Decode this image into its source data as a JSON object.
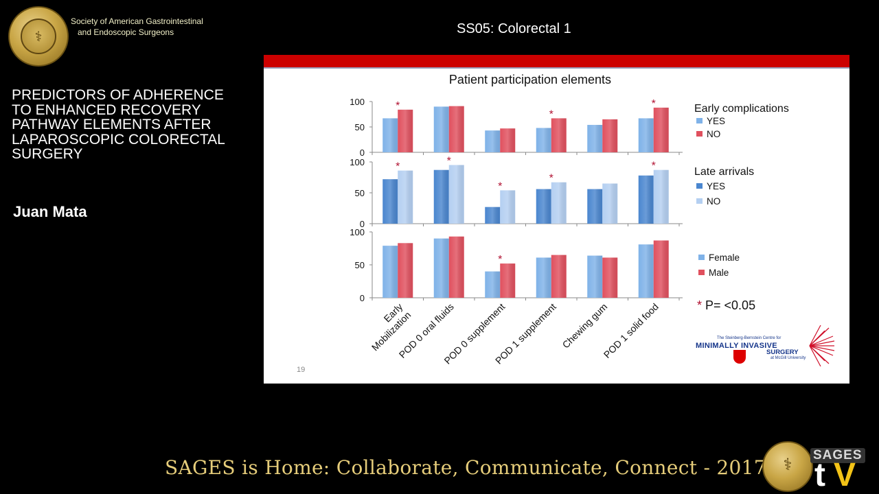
{
  "header": {
    "society_line1": "Society of American Gastrointestinal",
    "society_line2": "and Endoscopic Surgeons",
    "session": "SS05: Colorectal 1"
  },
  "talk": {
    "title_lines": [
      "PREDICTORS OF ADHERENCE",
      "TO ENHANCED RECOVERY",
      "PATHWAY ELEMENTS AFTER",
      "LAPAROSCOPIC COLORECTAL",
      "SURGERY"
    ],
    "author": "Juan Mata"
  },
  "footer": {
    "text": "SAGES is Home: Collaborate, Communicate, Connect - 2017"
  },
  "tv_logo": {
    "brand": "SAGES",
    "t": "t",
    "v": "V"
  },
  "slide": {
    "title": "Patient participation elements",
    "page_number": "19",
    "significance_note": "* P= <0.05",
    "logo_text": {
      "line1": "The Steinberg-Bernstein Centre for",
      "line2": "MINIMALLY INVASIVE",
      "line3": "SURGERY",
      "line4": "at McGill University"
    }
  },
  "colors": {
    "blue": "#7fb2e8",
    "red": "#e0505e",
    "dark_blue": "#4a86cf",
    "light_blue": "#b4cff1",
    "star": "#b01030",
    "slide_bar": "#cc0000",
    "footer_text": "#e6cd7a"
  },
  "chart_data": {
    "type": "bar",
    "categories": [
      "Early Mobilization",
      "POD 0 oral fluids",
      "POD 0 supplement",
      "POD 1 supplement",
      "Chewing gum",
      "POD 1 solid food"
    ],
    "panels": [
      {
        "legend_title": "Early complications",
        "yticks": [
          0,
          50,
          100
        ],
        "ylim": [
          0,
          100
        ],
        "series": [
          {
            "name": "YES",
            "color": "#7fb2e8",
            "values": [
              67,
              90,
              43,
              48,
              54,
              67
            ]
          },
          {
            "name": "NO",
            "color": "#e0505e",
            "values": [
              84,
              91,
              47,
              67,
              65,
              88
            ]
          }
        ],
        "significant": [
          true,
          false,
          false,
          true,
          false,
          true
        ]
      },
      {
        "legend_title": "Late arrivals",
        "yticks": [
          0,
          50,
          100
        ],
        "ylim": [
          0,
          100
        ],
        "series": [
          {
            "name": "YES",
            "color": "#4a86cf",
            "values": [
              72,
              87,
              27,
              56,
              56,
              78
            ]
          },
          {
            "name": "NO",
            "color": "#b4cff1",
            "values": [
              86,
              95,
              54,
              67,
              65,
              87
            ]
          }
        ],
        "significant": [
          true,
          true,
          true,
          true,
          false,
          true
        ]
      },
      {
        "legend_title": "",
        "yticks": [
          0,
          50,
          100
        ],
        "ylim": [
          0,
          100
        ],
        "series": [
          {
            "name": "Female",
            "color": "#7fb2e8",
            "values": [
              79,
              90,
              40,
              61,
              64,
              81
            ]
          },
          {
            "name": "Male",
            "color": "#e0505e",
            "values": [
              83,
              93,
              52,
              65,
              61,
              87
            ]
          }
        ],
        "significant": [
          false,
          false,
          true,
          false,
          false,
          false
        ]
      }
    ]
  }
}
